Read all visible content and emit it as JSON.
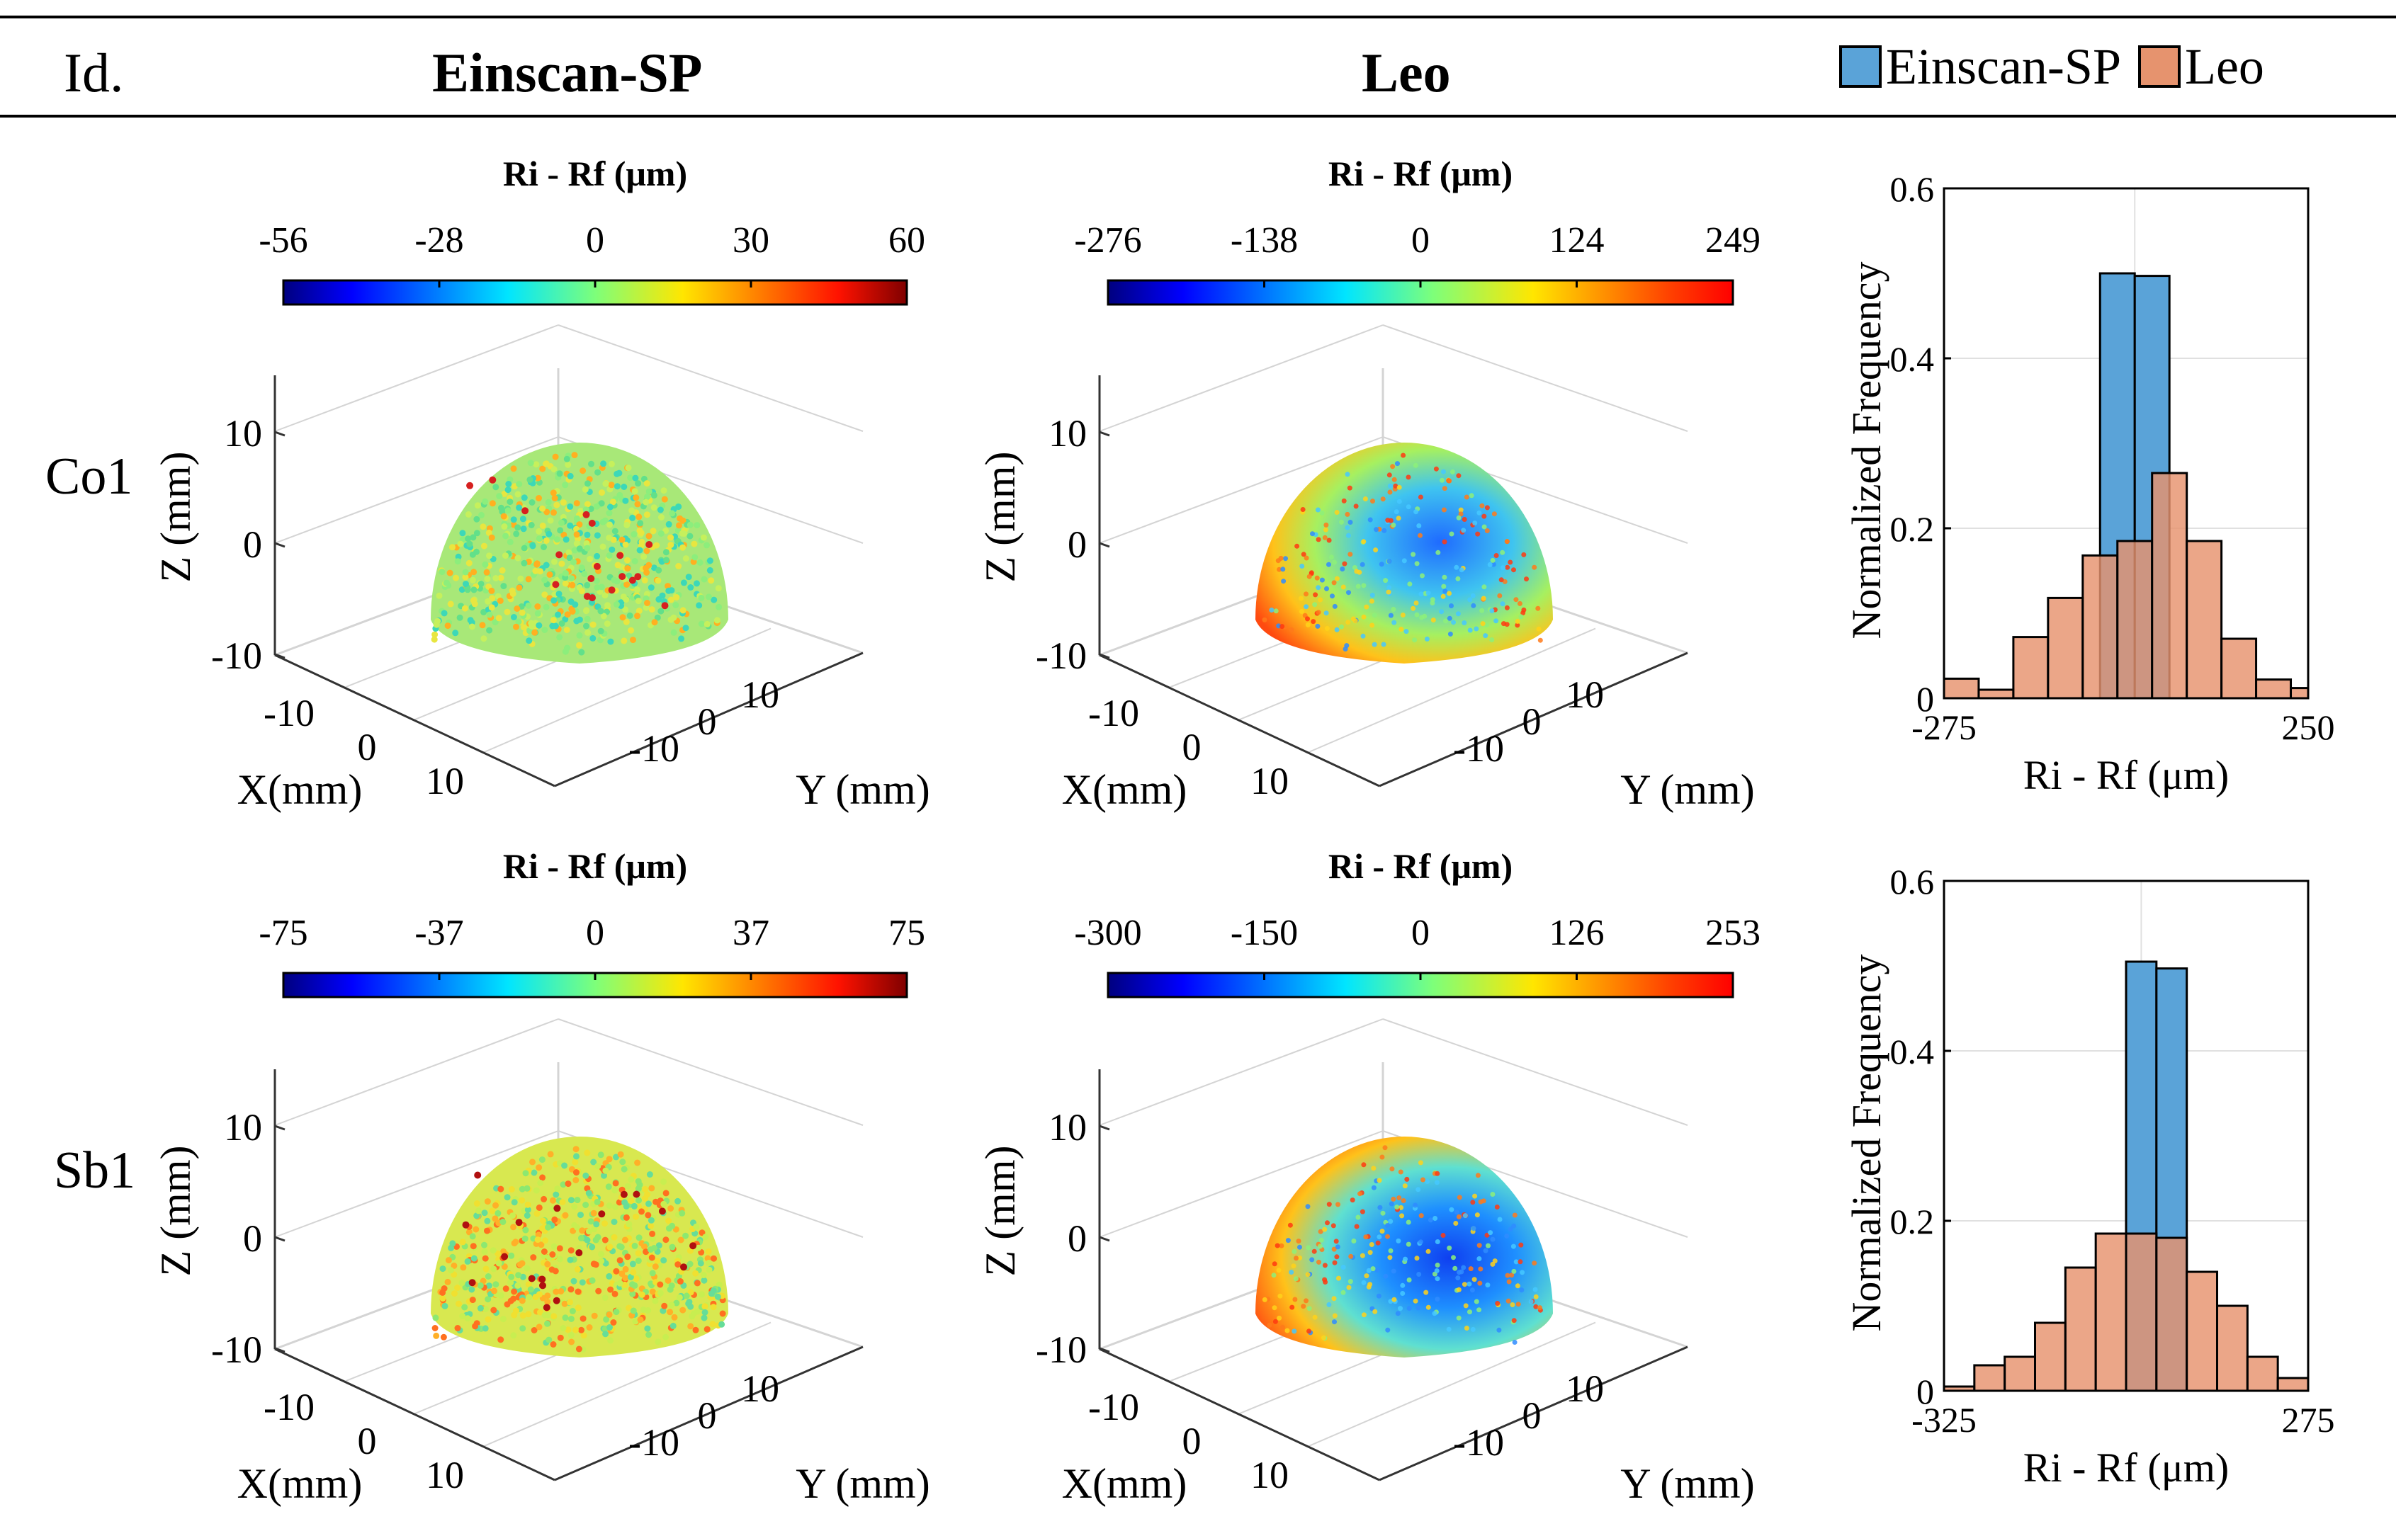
{
  "header": {
    "id_label": "Id.",
    "col_einscan": "Einscan-SP",
    "col_leo": "Leo",
    "legend": [
      {
        "label": "Einscan-SP",
        "color": "#5aa3d8"
      },
      {
        "label": "Leo",
        "color": "#e6936e"
      }
    ]
  },
  "rows": [
    {
      "label": "Co1"
    },
    {
      "label": "Sb1"
    }
  ],
  "colorbar_title": "Ri - Rf (μm)",
  "axes3d": {
    "z_label": "Z (mm)",
    "x_label": "X(mm)",
    "y_label": "Y (mm)",
    "z_ticks": [
      "10",
      "0",
      "-10"
    ],
    "x_ticks": [
      "-10",
      "0",
      "10"
    ],
    "y_ticks": [
      "-10",
      "0",
      "10"
    ]
  },
  "colorbars": [
    {
      "ticks": [
        "-56",
        "-28",
        "0",
        "30",
        "60"
      ]
    },
    {
      "ticks": [
        "-276",
        "-138",
        "0",
        "124",
        "249"
      ]
    },
    {
      "ticks": [
        "-75",
        "-37",
        "0",
        "37",
        "75"
      ]
    },
    {
      "ticks": [
        "-300",
        "-150",
        "0",
        "126",
        "253"
      ]
    }
  ],
  "chart_data": [
    {
      "type": "bar",
      "title": "Co1",
      "xlabel": "Ri - Rf (μm)",
      "ylabel": "Normalized Frequency",
      "xlim": [
        -275,
        250
      ],
      "ylim": [
        0,
        0.6
      ],
      "xtick_labels": [
        "-275",
        "250"
      ],
      "ytick_labels": [
        "0",
        "0.2",
        "0.4",
        "0.6"
      ],
      "series": [
        {
          "name": "Einscan-SP",
          "color": "#5aa3d8",
          "bins": [
            [
              -50,
              0,
              0.5
            ],
            [
              0,
              50,
              0.497
            ]
          ]
        },
        {
          "name": "Leo",
          "color": "#e6936e",
          "bins": [
            [
              -275,
              -225,
              0.023
            ],
            [
              -225,
              -175,
              0.01
            ],
            [
              -175,
              -125,
              0.072
            ],
            [
              -125,
              -75,
              0.118
            ],
            [
              -75,
              -25,
              0.168
            ],
            [
              -25,
              25,
              0.185
            ],
            [
              25,
              75,
              0.265
            ],
            [
              75,
              125,
              0.185
            ],
            [
              125,
              175,
              0.07
            ],
            [
              175,
              225,
              0.022
            ],
            [
              225,
              250,
              0.012
            ]
          ]
        }
      ]
    },
    {
      "type": "bar",
      "title": "Sb1",
      "xlabel": "Ri - Rf (μm)",
      "ylabel": "Normalized Frequency",
      "xlim": [
        -325,
        275
      ],
      "ylim": [
        0,
        0.6
      ],
      "xtick_labels": [
        "-325",
        "275"
      ],
      "ytick_labels": [
        "0",
        "0.2",
        "0.4",
        "0.6"
      ],
      "series": [
        {
          "name": "Einscan-SP",
          "color": "#5aa3d8",
          "bins": [
            [
              -25,
              25,
              0.505
            ],
            [
              25,
              75,
              0.497
            ]
          ]
        },
        {
          "name": "Leo",
          "color": "#e6936e",
          "bins": [
            [
              -325,
              -275,
              0.005
            ],
            [
              -275,
              -225,
              0.03
            ],
            [
              -225,
              -175,
              0.04
            ],
            [
              -175,
              -125,
              0.08
            ],
            [
              -125,
              -75,
              0.145
            ],
            [
              -75,
              -25,
              0.185
            ],
            [
              -25,
              25,
              0.185
            ],
            [
              25,
              75,
              0.18
            ],
            [
              75,
              125,
              0.14
            ],
            [
              125,
              175,
              0.1
            ],
            [
              175,
              225,
              0.04
            ],
            [
              225,
              275,
              0.015
            ]
          ]
        }
      ]
    }
  ]
}
